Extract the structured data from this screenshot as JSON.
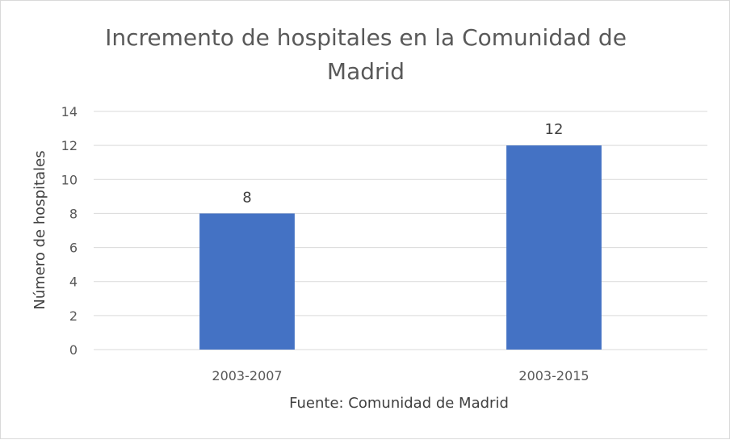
{
  "chart_data": {
    "type": "bar",
    "title_lines": [
      "Incremento de hospitales en la Comunidad de",
      "Madrid"
    ],
    "categories": [
      "2003-2007",
      "2003-2015"
    ],
    "values": [
      8,
      12
    ],
    "data_labels": [
      "8",
      "12"
    ],
    "xlabel": "Fuente: Comunidad de Madrid",
    "ylabel": "Número de hospitales",
    "ylim": [
      0,
      14
    ],
    "yticks": [
      0,
      2,
      4,
      6,
      8,
      10,
      12,
      14
    ],
    "grid": true,
    "legend": "none",
    "bar_color": "#4472c4"
  }
}
